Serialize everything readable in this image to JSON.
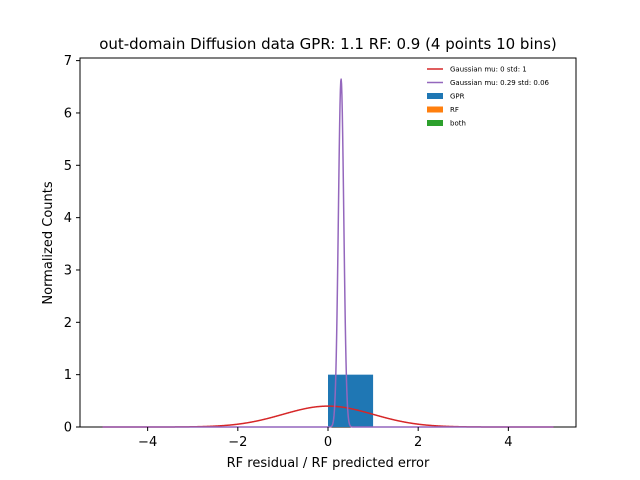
{
  "chart_data": {
    "type": "histogram",
    "title": "out-domain Diffusion data GPR: 1.1 RF: 0.9 (4 points 10 bins)",
    "xlabel": "RF residual / RF predicted error",
    "ylabel": "Normalized Counts",
    "xlim": [
      -5.5,
      5.5
    ],
    "ylim": [
      0,
      7.05
    ],
    "xticks": [
      -4,
      -2,
      0,
      2,
      4
    ],
    "xtick_labels": [
      "−4",
      "−2",
      "0",
      "2",
      "4"
    ],
    "yticks": [
      0,
      1,
      2,
      3,
      4,
      5,
      6,
      7
    ],
    "ytick_labels": [
      "0",
      "1",
      "2",
      "3",
      "4",
      "5",
      "6",
      "7"
    ],
    "grid": false,
    "legend_position": "upper right",
    "bars": [
      {
        "series": "GPR",
        "x0": 0.0,
        "x1": 1.0,
        "height": 1.0
      }
    ],
    "series": [
      {
        "name": "Gaussian mu: 0 std: 1",
        "kind": "line",
        "color": "#d62728",
        "mu": 0,
        "std": 1,
        "x_range": [
          -5,
          5
        ]
      },
      {
        "name": "Gaussian mu: 0.29 std: 0.06",
        "kind": "line",
        "color": "#9467bd",
        "mu": 0.29,
        "std": 0.06,
        "x_range": [
          -5,
          5
        ]
      },
      {
        "name": "GPR",
        "kind": "bar",
        "color": "#1f77b4"
      },
      {
        "name": "RF",
        "kind": "bar",
        "color": "#ff7f0e"
      },
      {
        "name": "both",
        "kind": "bar",
        "color": "#2ca02c"
      }
    ]
  }
}
